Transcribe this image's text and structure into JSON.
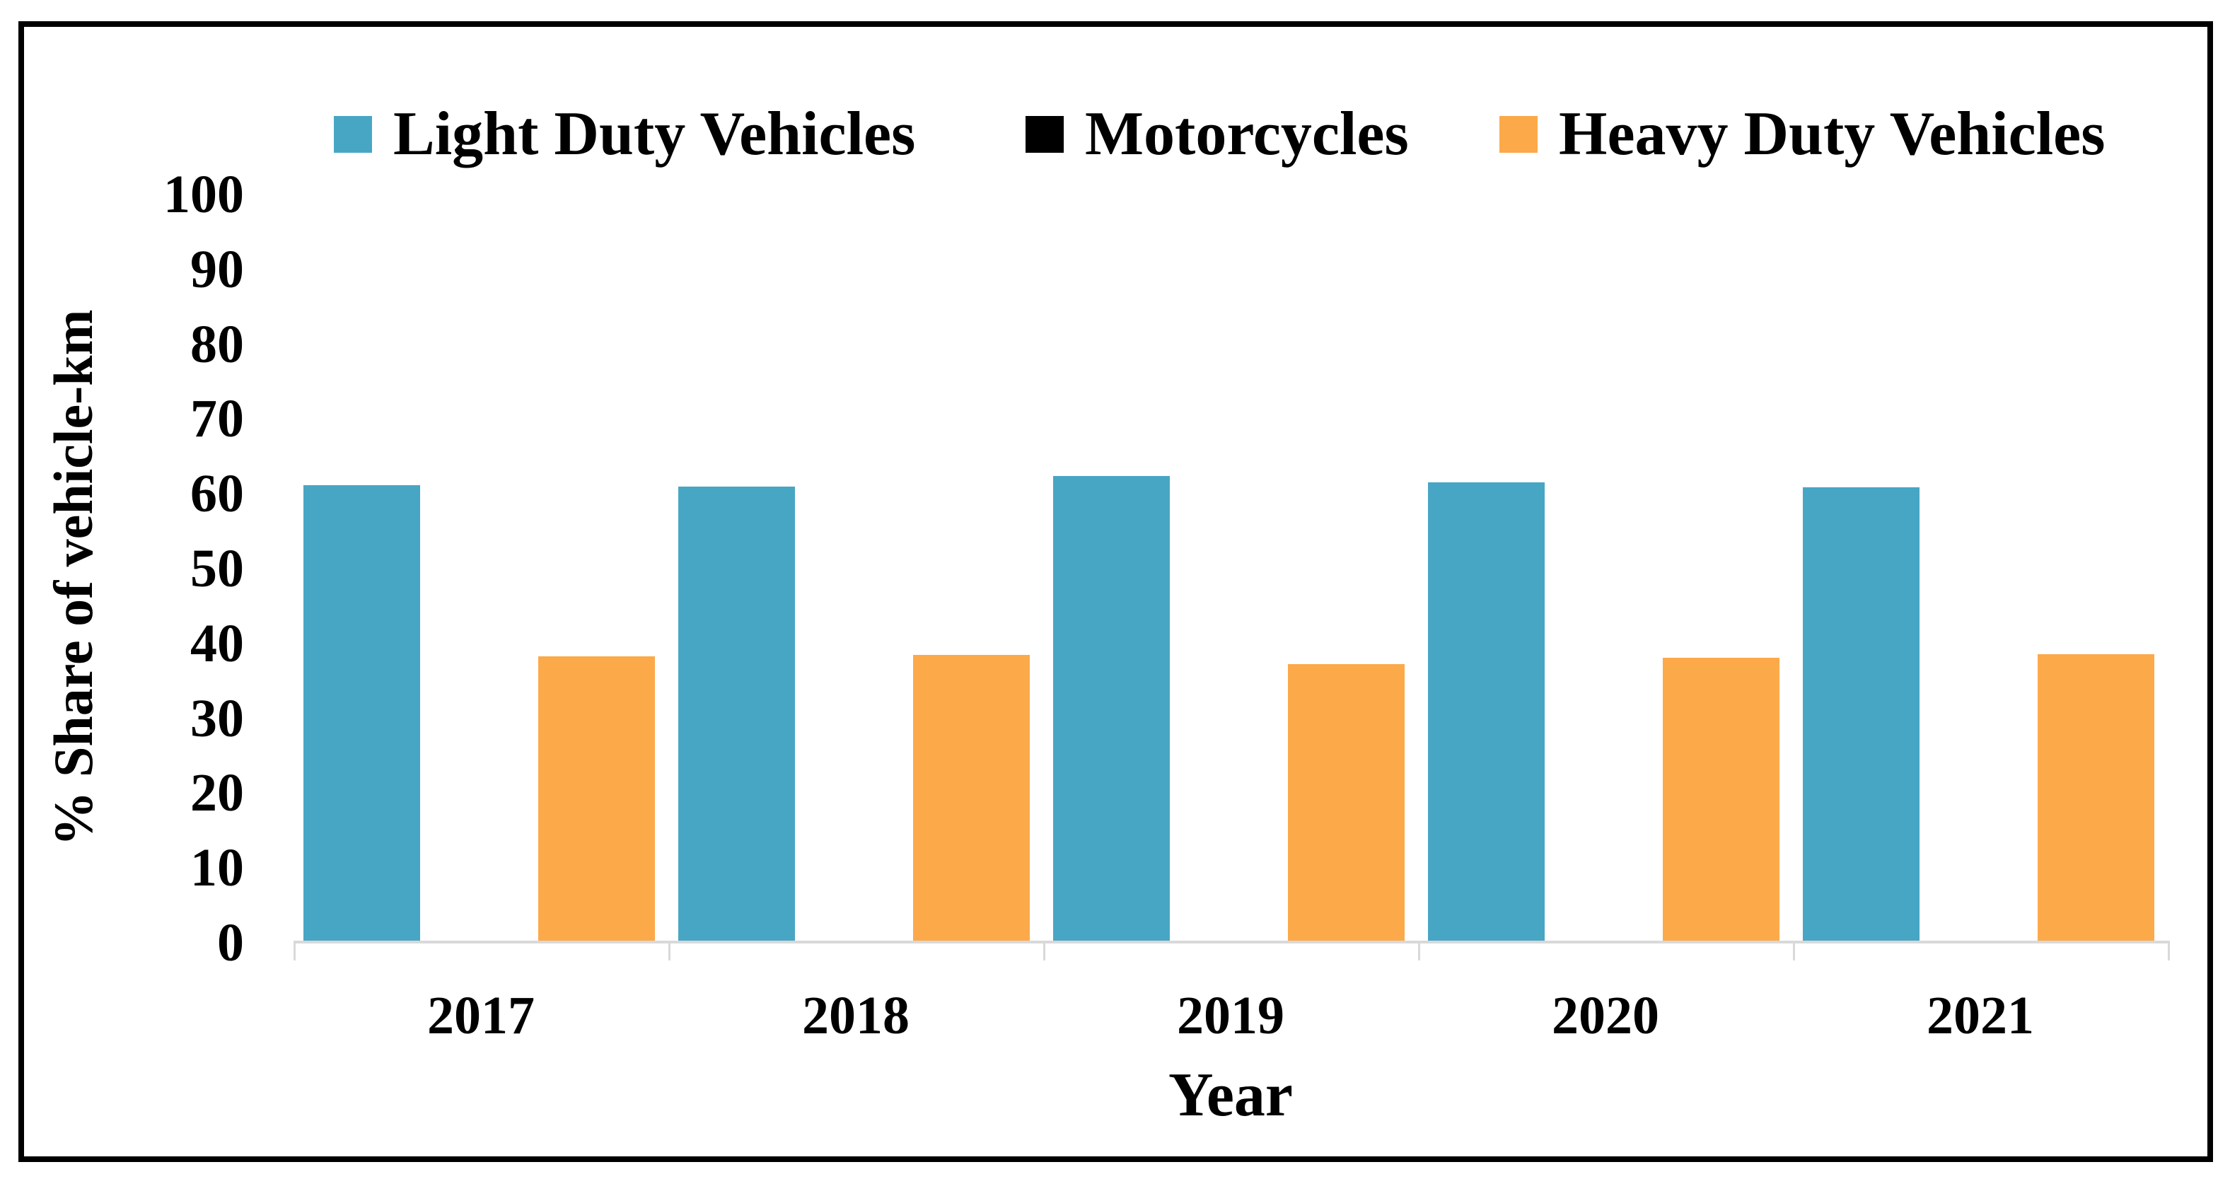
{
  "chart_data": {
    "type": "bar",
    "title": "",
    "xlabel": "Year",
    "ylabel": "% Share of vehicle-km",
    "categories": [
      "2017",
      "2018",
      "2019",
      "2020",
      "2021"
    ],
    "series": [
      {
        "name": "Light Duty Vehicles",
        "color": "#48A6C5",
        "values": [
          61.2,
          61.0,
          62.4,
          61.5,
          60.9
        ]
      },
      {
        "name": "Motorcycles",
        "color": "#000000",
        "values": [
          0,
          0,
          0,
          0,
          0
        ]
      },
      {
        "name": "Heavy Duty Vehicles",
        "color": "#FCA94A",
        "values": [
          38.3,
          38.5,
          37.2,
          38.1,
          38.6
        ]
      }
    ],
    "ylim": [
      0,
      100
    ],
    "ytick_step": 10,
    "grid": false,
    "legend_position": "top",
    "axis_color": "#D9D9D9",
    "frame_color": "#000000"
  }
}
